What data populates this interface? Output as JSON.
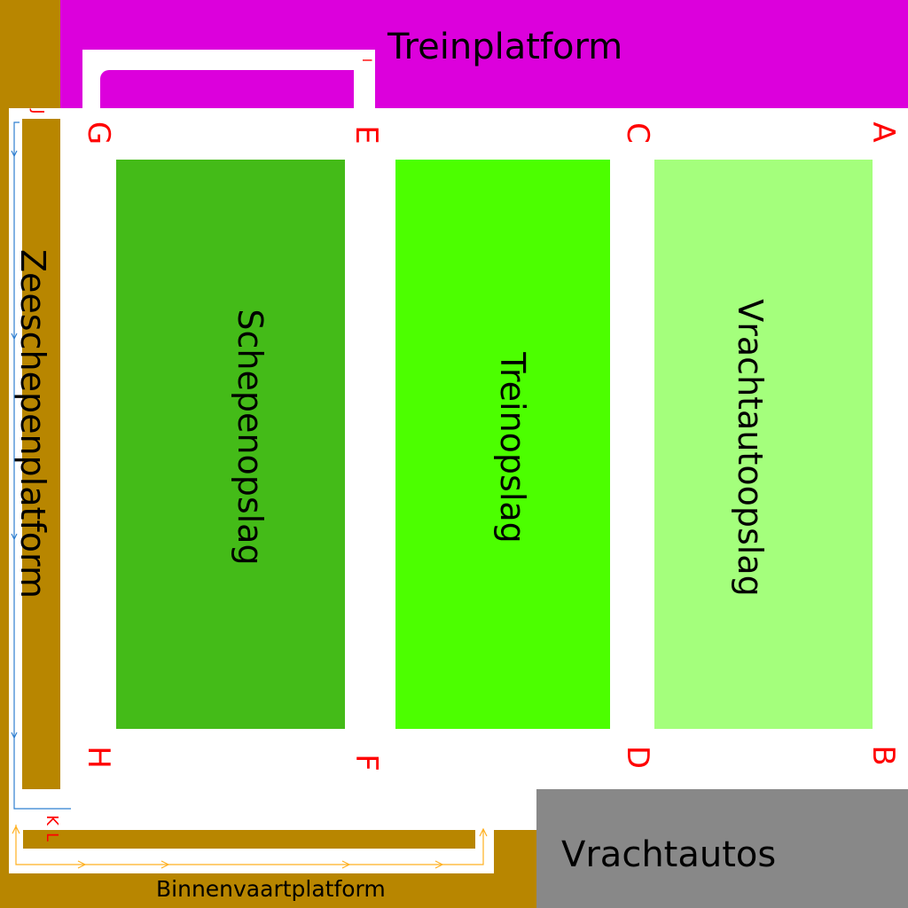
{
  "labels": {
    "train_platform": "Treinplatform",
    "sea_ship_platform": "Zeeschepenplatform",
    "inland_platform": "Binnenvaartplatform",
    "trucks": "Vrachtautos",
    "ship_storage": "Schepenopslag",
    "train_storage": "Treinopslag",
    "truck_storage": "Vrachtautoopslag"
  },
  "corners": {
    "a": "A",
    "b": "B",
    "c": "C",
    "d": "D",
    "e": "E",
    "f": "F",
    "g": "G",
    "h": "H",
    "i": "I",
    "j": "J",
    "k": "K",
    "l": "L"
  },
  "colors": {
    "train_platform": "#dc00dc",
    "sea_platform": "#b88600",
    "trucks": "#888888",
    "ship_storage": "#44bb18",
    "train_storage": "#4cff00",
    "truck_storage": "#a4ff7c",
    "corner_text": "#ff0000",
    "route_blue": "#2f7fd0",
    "route_orange": "#ffb020"
  }
}
